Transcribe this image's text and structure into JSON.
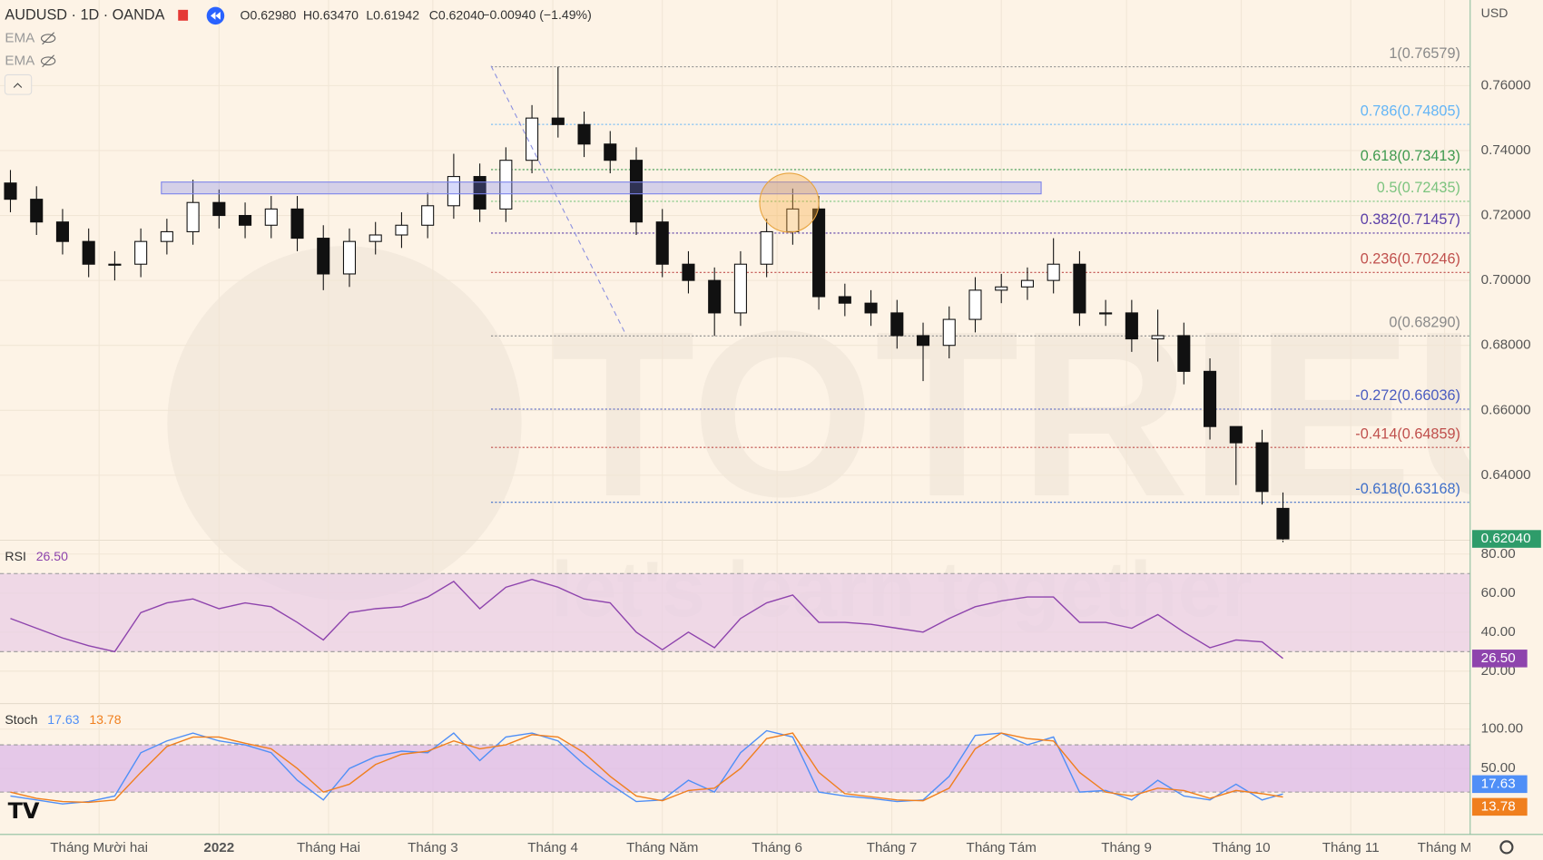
{
  "header": {
    "symbol": "AUDUSD · 1D · OANDA",
    "ohlc": [
      {
        "label": "O",
        "value": "0.62980"
      },
      {
        "label": "H",
        "value": "0.63470"
      },
      {
        "label": "L",
        "value": "0.61942"
      },
      {
        "label": "C",
        "value": "0.62040"
      }
    ],
    "change": "−0.00940 (−1.49%)",
    "indicators": [
      "EMA",
      "EMA"
    ],
    "currency": "USD",
    "watermark": "TOTRIEU",
    "watermark_slogan": "let's learn together"
  },
  "chart_data": [
    {
      "type": "candlestick",
      "title": "AUDUSD",
      "x": [
        2,
        7,
        12,
        17,
        22,
        27,
        32,
        37,
        42,
        47,
        52,
        57,
        62,
        67,
        72,
        77,
        82,
        87,
        92,
        97,
        102,
        107,
        112,
        117,
        122,
        127,
        132,
        137,
        142,
        147,
        152,
        157,
        162,
        167,
        172,
        177,
        182,
        187,
        192,
        197,
        202,
        207,
        212,
        217,
        222,
        227,
        232,
        237,
        242,
        246
      ],
      "open": [
        0.73,
        0.725,
        0.718,
        0.712,
        0.705,
        0.705,
        0.712,
        0.715,
        0.724,
        0.72,
        0.717,
        0.722,
        0.713,
        0.702,
        0.712,
        0.714,
        0.717,
        0.723,
        0.732,
        0.722,
        0.737,
        0.75,
        0.748,
        0.742,
        0.737,
        0.718,
        0.705,
        0.7,
        0.69,
        0.705,
        0.715,
        0.722,
        0.695,
        0.693,
        0.69,
        0.683,
        0.68,
        0.688,
        0.697,
        0.698,
        0.7,
        0.705,
        0.69,
        0.69,
        0.682,
        0.683,
        0.672,
        0.655,
        0.65,
        0.6298
      ],
      "high": [
        0.734,
        0.729,
        0.722,
        0.716,
        0.709,
        0.716,
        0.719,
        0.731,
        0.728,
        0.724,
        0.726,
        0.726,
        0.717,
        0.716,
        0.718,
        0.721,
        0.727,
        0.739,
        0.736,
        0.741,
        0.754,
        0.7658,
        0.752,
        0.746,
        0.741,
        0.722,
        0.709,
        0.704,
        0.709,
        0.719,
        0.7283,
        0.726,
        0.699,
        0.697,
        0.694,
        0.687,
        0.692,
        0.701,
        0.702,
        0.704,
        0.713,
        0.709,
        0.694,
        0.694,
        0.691,
        0.687,
        0.676,
        0.655,
        0.654,
        0.6347
      ],
      "low": [
        0.721,
        0.714,
        0.708,
        0.701,
        0.7,
        0.701,
        0.708,
        0.711,
        0.716,
        0.713,
        0.713,
        0.709,
        0.697,
        0.698,
        0.708,
        0.71,
        0.713,
        0.719,
        0.718,
        0.718,
        0.733,
        0.744,
        0.738,
        0.733,
        0.714,
        0.701,
        0.696,
        0.6829,
        0.686,
        0.701,
        0.711,
        0.691,
        0.689,
        0.686,
        0.679,
        0.669,
        0.676,
        0.684,
        0.693,
        0.694,
        0.696,
        0.686,
        0.686,
        0.678,
        0.675,
        0.668,
        0.651,
        0.637,
        0.631,
        0.6194
      ],
      "close": [
        0.725,
        0.718,
        0.712,
        0.705,
        0.705,
        0.712,
        0.715,
        0.724,
        0.72,
        0.717,
        0.722,
        0.713,
        0.702,
        0.712,
        0.714,
        0.717,
        0.723,
        0.732,
        0.722,
        0.737,
        0.75,
        0.748,
        0.742,
        0.737,
        0.718,
        0.705,
        0.7,
        0.69,
        0.705,
        0.715,
        0.722,
        0.695,
        0.693,
        0.69,
        0.683,
        0.68,
        0.688,
        0.697,
        0.698,
        0.7,
        0.705,
        0.69,
        0.69,
        0.682,
        0.683,
        0.672,
        0.655,
        0.65,
        0.635,
        0.6204
      ],
      "last_label": "0.62040",
      "last_color": "#2e9c6a",
      "xlim": [
        0,
        281.9
      ],
      "ylim": [
        0.62,
        0.78636
      ],
      "xticks": [
        {
          "value": 19,
          "label": "Tháng Mười hai"
        },
        {
          "value": 42,
          "label": "2022"
        },
        {
          "value": 63,
          "label": "Tháng Hai"
        },
        {
          "value": 83,
          "label": "Tháng 3"
        },
        {
          "value": 106,
          "label": "Tháng 4"
        },
        {
          "value": 127,
          "label": "Tháng Năm"
        },
        {
          "value": 149,
          "label": "Tháng 6"
        },
        {
          "value": 171,
          "label": "Tháng 7"
        },
        {
          "value": 192,
          "label": "Tháng Tám"
        },
        {
          "value": 216,
          "label": "Tháng 9"
        },
        {
          "value": 238,
          "label": "Tháng 10"
        },
        {
          "value": 259,
          "label": "Tháng 11"
        },
        {
          "value": 277,
          "label": "Tháng M"
        }
      ],
      "yticks": [
        {
          "value": 0.76,
          "label": "0.76000"
        },
        {
          "value": 0.74,
          "label": "0.74000"
        },
        {
          "value": 0.72,
          "label": "0.72000"
        },
        {
          "value": 0.7,
          "label": "0.70000"
        },
        {
          "value": 0.68,
          "label": "0.68000"
        },
        {
          "value": 0.66,
          "label": "0.66000"
        },
        {
          "value": 0.64,
          "label": "0.64000"
        }
      ],
      "grid": true,
      "fib_levels": [
        {
          "label": "1(0.76579)",
          "value": 0.76579,
          "color": "#8a8a8a"
        },
        {
          "label": "0.786(0.74805)",
          "value": 0.74805,
          "color": "#64b5f6"
        },
        {
          "label": "0.618(0.73413)",
          "value": 0.73413,
          "color": "#3f9a4f"
        },
        {
          "label": "0.5(0.72435)",
          "value": 0.72435,
          "color": "#7cc47f"
        },
        {
          "label": "0.382(0.71457)",
          "value": 0.71457,
          "color": "#5b3fa8"
        },
        {
          "label": "0.236(0.70246)",
          "value": 0.70246,
          "color": "#c0504d"
        },
        {
          "label": "0(0.68290)",
          "value": 0.6829,
          "color": "#8a8a8a"
        },
        {
          "label": "-0.272(0.66036)",
          "value": 0.66036,
          "color": "#4a5cc0"
        },
        {
          "label": "-0.414(0.64859)",
          "value": 0.64859,
          "color": "#c0504d"
        },
        {
          "label": "-0.618(0.63168)",
          "value": 0.63168,
          "color": "#3f6fc9"
        }
      ]
    },
    {
      "type": "line",
      "title": "RSI",
      "x": [
        2,
        7,
        12,
        17,
        22,
        27,
        32,
        37,
        42,
        47,
        52,
        57,
        62,
        67,
        72,
        77,
        82,
        87,
        92,
        97,
        102,
        107,
        112,
        117,
        122,
        127,
        132,
        137,
        142,
        147,
        152,
        157,
        162,
        167,
        172,
        177,
        182,
        187,
        192,
        197,
        202,
        207,
        212,
        217,
        222,
        227,
        232,
        237,
        242,
        246
      ],
      "series": [
        {
          "name": "RSI",
          "color": "#8e44ad",
          "last_label": "26.50",
          "values": [
            47,
            42,
            37,
            33,
            30,
            50,
            55,
            57,
            52,
            55,
            53,
            45,
            36,
            50,
            52,
            53,
            58,
            66,
            52,
            63,
            67,
            63,
            57,
            55,
            40,
            31,
            40,
            32,
            47,
            55,
            59,
            45,
            45,
            44,
            42,
            40,
            47,
            53,
            56,
            58,
            58,
            45,
            45,
            42,
            49,
            40,
            32,
            36,
            35,
            26.5
          ]
        }
      ],
      "xlim": [
        0,
        281.9
      ],
      "ylim": [
        3.4,
        87.1
      ],
      "yticks": [
        {
          "value": 80,
          "label": "80.00"
        },
        {
          "value": 60,
          "label": "60.00"
        },
        {
          "value": 40,
          "label": "40.00"
        },
        {
          "value": 20,
          "label": "20.00"
        }
      ],
      "bands": [
        30,
        70
      ],
      "band_color": "#e9cfe6"
    },
    {
      "type": "line",
      "title": "Stoch",
      "x": [
        2,
        7,
        12,
        17,
        22,
        27,
        32,
        37,
        42,
        47,
        52,
        57,
        62,
        67,
        72,
        77,
        82,
        87,
        92,
        97,
        102,
        107,
        112,
        117,
        122,
        127,
        132,
        137,
        142,
        147,
        152,
        157,
        162,
        167,
        172,
        177,
        182,
        187,
        192,
        197,
        202,
        207,
        212,
        217,
        222,
        227,
        232,
        237,
        242,
        246
      ],
      "series": [
        {
          "color": "#4f8ff7",
          "last_label": "17.63",
          "values": [
            15,
            10,
            5,
            8,
            15,
            70,
            85,
            95,
            85,
            80,
            70,
            35,
            10,
            50,
            65,
            72,
            70,
            95,
            60,
            90,
            95,
            85,
            55,
            30,
            8,
            10,
            35,
            20,
            70,
            98,
            90,
            20,
            15,
            12,
            8,
            10,
            40,
            92,
            95,
            80,
            90,
            20,
            22,
            10,
            35,
            15,
            10,
            30,
            10,
            17.63
          ]
        },
        {
          "color": "#f07f1e",
          "last_label": "13.78",
          "values": [
            20,
            12,
            8,
            7,
            10,
            45,
            78,
            90,
            90,
            82,
            75,
            50,
            20,
            30,
            55,
            68,
            72,
            85,
            75,
            80,
            93,
            90,
            70,
            40,
            15,
            9,
            22,
            25,
            50,
            88,
            95,
            45,
            18,
            14,
            10,
            9,
            25,
            75,
            95,
            88,
            85,
            45,
            20,
            15,
            25,
            22,
            12,
            22,
            18,
            13.78
          ]
        }
      ],
      "xlim": [
        0,
        281.9
      ],
      "ylim": [
        -33.8,
        132.5
      ],
      "yticks": [
        {
          "value": 100,
          "label": "100.00"
        },
        {
          "value": 50,
          "label": "50.00"
        }
      ],
      "bands": [
        20,
        80
      ],
      "band_color": "#dcb9e8"
    }
  ]
}
